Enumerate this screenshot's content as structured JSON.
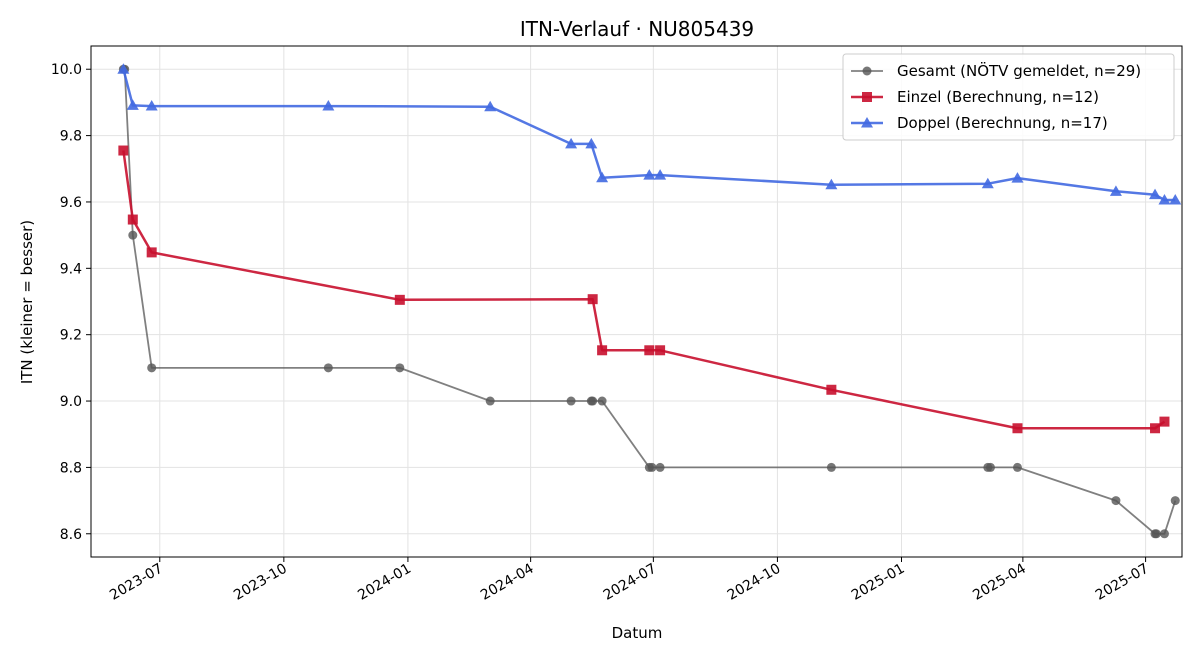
{
  "chart_data": {
    "type": "line",
    "title": "ITN-Verlauf · NU805439",
    "xlabel": "Datum",
    "ylabel": "ITN  (kleiner = besser)",
    "xlim": [
      "2023-05-11",
      "2025-07-28"
    ],
    "ylim": [
      8.53,
      10.07
    ],
    "x_ticks": [
      "2023-07",
      "2023-10",
      "2024-01",
      "2024-04",
      "2024-07",
      "2024-10",
      "2025-01",
      "2025-04",
      "2025-07"
    ],
    "y_ticks": [
      "8.6",
      "8.8",
      "9.0",
      "9.2",
      "9.4",
      "9.6",
      "9.8",
      "10.0"
    ],
    "grid": true,
    "legend_position": "top-right",
    "series": [
      {
        "name": "Gesamt (NÖTV gemeldet, n=29)",
        "color": "#555555",
        "marker": "circle",
        "points": [
          [
            "2023-06-04",
            10.0
          ],
          [
            "2023-06-05",
            10.0
          ],
          [
            "2023-06-11",
            9.5
          ],
          [
            "2023-06-25",
            9.1
          ],
          [
            "2023-11-03",
            9.1
          ],
          [
            "2023-12-26",
            9.1
          ],
          [
            "2024-03-02",
            9.0
          ],
          [
            "2024-05-01",
            9.0
          ],
          [
            "2024-05-16",
            9.0
          ],
          [
            "2024-05-17",
            9.0
          ],
          [
            "2024-05-24",
            9.0
          ],
          [
            "2024-06-28",
            8.8
          ],
          [
            "2024-06-30",
            8.8
          ],
          [
            "2024-07-06",
            8.8
          ],
          [
            "2024-11-10",
            8.8
          ],
          [
            "2025-03-06",
            8.8
          ],
          [
            "2025-03-08",
            8.8
          ],
          [
            "2025-03-28",
            8.8
          ],
          [
            "2025-06-09",
            8.7
          ],
          [
            "2025-07-08",
            8.6
          ],
          [
            "2025-07-09",
            8.6
          ],
          [
            "2025-07-15",
            8.6
          ],
          [
            "2025-07-23",
            8.7
          ]
        ]
      },
      {
        "name": "Einzel (Berechnung, n=12)",
        "color": "#c8102e",
        "marker": "square",
        "points": [
          [
            "2023-06-04",
            9.755
          ],
          [
            "2023-06-11",
            9.547
          ],
          [
            "2023-06-25",
            9.448
          ],
          [
            "2023-12-26",
            9.305
          ],
          [
            "2024-05-17",
            9.307
          ],
          [
            "2024-05-24",
            9.153
          ],
          [
            "2024-06-28",
            9.153
          ],
          [
            "2024-07-06",
            9.153
          ],
          [
            "2024-11-10",
            9.034
          ],
          [
            "2025-03-28",
            8.918
          ],
          [
            "2025-07-08",
            8.918
          ],
          [
            "2025-07-15",
            8.938
          ]
        ]
      },
      {
        "name": "Doppel (Berechnung, n=17)",
        "color": "#4169e1",
        "marker": "triangle",
        "points": [
          [
            "2023-06-04",
            10.0
          ],
          [
            "2023-06-11",
            9.891
          ],
          [
            "2023-06-25",
            9.889
          ],
          [
            "2023-11-03",
            9.889
          ],
          [
            "2024-03-02",
            9.887
          ],
          [
            "2024-05-01",
            9.775
          ],
          [
            "2024-05-16",
            9.775
          ],
          [
            "2024-05-24",
            9.673
          ],
          [
            "2024-06-28",
            9.681
          ],
          [
            "2024-07-06",
            9.681
          ],
          [
            "2024-11-10",
            9.652
          ],
          [
            "2025-03-06",
            9.655
          ],
          [
            "2025-03-28",
            9.672
          ],
          [
            "2025-06-09",
            9.632
          ],
          [
            "2025-07-08",
            9.622
          ],
          [
            "2025-07-15",
            9.606
          ],
          [
            "2025-07-23",
            9.606
          ]
        ]
      }
    ]
  }
}
